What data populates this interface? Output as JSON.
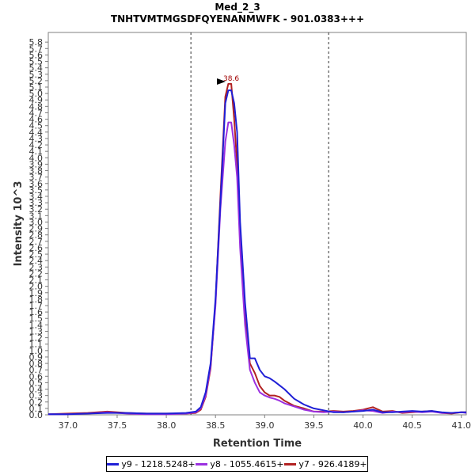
{
  "chart_data": {
    "type": "line",
    "title": "Med_2_3",
    "subtitle": "TNHTVMTMGSDFQYENANMWFK - 901.0383+++",
    "xlabel": "Retention Time",
    "ylabel": "Intensity 10^3",
    "xlim": [
      36.8,
      41.05
    ],
    "ylim": [
      0,
      5.95
    ],
    "xticks": [
      "37.0",
      "37.5",
      "38.0",
      "38.5",
      "39.0",
      "39.5",
      "40.0",
      "40.5",
      "41.0"
    ],
    "xtick_values": [
      37.0,
      37.5,
      38.0,
      38.5,
      39.0,
      39.5,
      40.0,
      40.5,
      41.0
    ],
    "yticks": [
      "0.0",
      "0.1",
      "0.2",
      "0.3",
      "0.4",
      "0.5",
      "0.6",
      "0.7",
      "0.8",
      "0.9",
      "1.0",
      "1.1",
      "1.2",
      "1.3",
      "1.4",
      "1.5",
      "1.6",
      "1.7",
      "1.8",
      "1.9",
      "2.0",
      "2.1",
      "2.2",
      "2.3",
      "2.4",
      "2.5",
      "2.6",
      "2.7",
      "2.8",
      "2.9",
      "3.0",
      "3.1",
      "3.2",
      "3.3",
      "3.4",
      "3.5",
      "3.6",
      "3.7",
      "3.8",
      "3.9",
      "4.0",
      "4.1",
      "4.2",
      "4.3",
      "4.4",
      "4.5",
      "4.6",
      "4.7",
      "4.8",
      "4.9",
      "5.0",
      "5.1",
      "5.2",
      "5.3",
      "5.4",
      "5.5",
      "5.6",
      "5.7",
      "5.8"
    ],
    "ytick_values": [
      0.0,
      0.1,
      0.2,
      0.3,
      0.4,
      0.5,
      0.6,
      0.7,
      0.8,
      0.9,
      1.0,
      1.1,
      1.2,
      1.3,
      1.4,
      1.5,
      1.6,
      1.7,
      1.8,
      1.9,
      2.0,
      2.1,
      2.2,
      2.3,
      2.4,
      2.5,
      2.6,
      2.7,
      2.8,
      2.9,
      3.0,
      3.1,
      3.2,
      3.3,
      3.4,
      3.5,
      3.6,
      3.7,
      3.8,
      3.9,
      4.0,
      4.1,
      4.2,
      4.3,
      4.4,
      4.5,
      4.6,
      4.7,
      4.8,
      4.9,
      5.0,
      5.1,
      5.2,
      5.3,
      5.4,
      5.5,
      5.6,
      5.7,
      5.8
    ],
    "grid": false,
    "legend_position": "bottom",
    "vlines": [
      38.25,
      39.65
    ],
    "peak_label": {
      "text": "38.6",
      "x": 38.66,
      "y": 5.15
    },
    "series": [
      {
        "name": "y9 - 1218.5248+",
        "color": "#1f1fd6",
        "x": [
          36.8,
          37.0,
          37.2,
          37.4,
          37.6,
          37.8,
          38.0,
          38.2,
          38.3,
          38.35,
          38.4,
          38.45,
          38.5,
          38.55,
          38.6,
          38.63,
          38.66,
          38.69,
          38.72,
          38.75,
          38.8,
          38.85,
          38.9,
          38.95,
          39.0,
          39.05,
          39.1,
          39.15,
          39.2,
          39.3,
          39.4,
          39.5,
          39.6,
          39.7,
          39.8,
          39.9,
          40.0,
          40.1,
          40.2,
          40.3,
          40.4,
          40.5,
          40.6,
          40.7,
          40.8,
          40.9,
          41.0,
          41.05
        ],
        "y": [
          0.01,
          0.01,
          0.02,
          0.03,
          0.03,
          0.02,
          0.02,
          0.03,
          0.05,
          0.12,
          0.35,
          0.8,
          1.8,
          3.3,
          4.85,
          5.05,
          5.05,
          4.85,
          4.4,
          3.0,
          1.75,
          0.88,
          0.88,
          0.7,
          0.6,
          0.57,
          0.52,
          0.46,
          0.4,
          0.25,
          0.16,
          0.1,
          0.07,
          0.04,
          0.04,
          0.05,
          0.06,
          0.08,
          0.04,
          0.04,
          0.05,
          0.06,
          0.05,
          0.06,
          0.04,
          0.03,
          0.04,
          0.04
        ]
      },
      {
        "name": "y8 - 1055.4615+",
        "color": "#9b30e0",
        "x": [
          36.8,
          37.0,
          37.2,
          37.4,
          37.6,
          37.8,
          38.0,
          38.2,
          38.3,
          38.35,
          38.4,
          38.45,
          38.5,
          38.55,
          38.6,
          38.63,
          38.66,
          38.69,
          38.72,
          38.75,
          38.8,
          38.85,
          38.9,
          38.95,
          39.0,
          39.05,
          39.1,
          39.15,
          39.2,
          39.3,
          39.4,
          39.5,
          39.6,
          39.7,
          39.8,
          39.9,
          40.0,
          40.1,
          40.2,
          40.3,
          40.4,
          40.5,
          40.6,
          40.7,
          40.8,
          40.9,
          41.0,
          41.05
        ],
        "y": [
          0.01,
          0.01,
          0.02,
          0.04,
          0.02,
          0.01,
          0.01,
          0.02,
          0.04,
          0.1,
          0.3,
          0.75,
          1.7,
          3.2,
          4.25,
          4.55,
          4.55,
          4.2,
          3.7,
          2.6,
          1.4,
          0.7,
          0.5,
          0.35,
          0.3,
          0.27,
          0.25,
          0.22,
          0.18,
          0.13,
          0.08,
          0.05,
          0.04,
          0.05,
          0.04,
          0.05,
          0.07,
          0.06,
          0.03,
          0.05,
          0.04,
          0.05,
          0.04,
          0.05,
          0.03,
          0.03,
          0.04,
          0.03
        ]
      },
      {
        "name": "y7 - 926.4189+",
        "color": "#b22222",
        "x": [
          36.8,
          37.0,
          37.2,
          37.4,
          37.6,
          37.8,
          38.0,
          38.2,
          38.3,
          38.35,
          38.4,
          38.45,
          38.5,
          38.55,
          38.6,
          38.63,
          38.66,
          38.69,
          38.72,
          38.75,
          38.8,
          38.85,
          38.9,
          38.95,
          39.0,
          39.05,
          39.1,
          39.15,
          39.2,
          39.3,
          39.4,
          39.5,
          39.6,
          39.7,
          39.8,
          39.9,
          40.0,
          40.1,
          40.2,
          40.3,
          40.4,
          40.5,
          40.6,
          40.7,
          40.8,
          40.9,
          41.0,
          41.05
        ],
        "y": [
          0.01,
          0.02,
          0.03,
          0.05,
          0.03,
          0.02,
          0.02,
          0.02,
          0.03,
          0.08,
          0.28,
          0.72,
          1.75,
          3.4,
          4.95,
          5.15,
          5.15,
          4.6,
          3.9,
          2.7,
          1.5,
          0.8,
          0.65,
          0.45,
          0.35,
          0.3,
          0.3,
          0.28,
          0.22,
          0.14,
          0.1,
          0.05,
          0.05,
          0.06,
          0.05,
          0.06,
          0.08,
          0.12,
          0.05,
          0.06,
          0.03,
          0.04,
          0.05,
          0.06,
          0.03,
          0.02,
          0.04,
          0.04
        ]
      }
    ]
  }
}
